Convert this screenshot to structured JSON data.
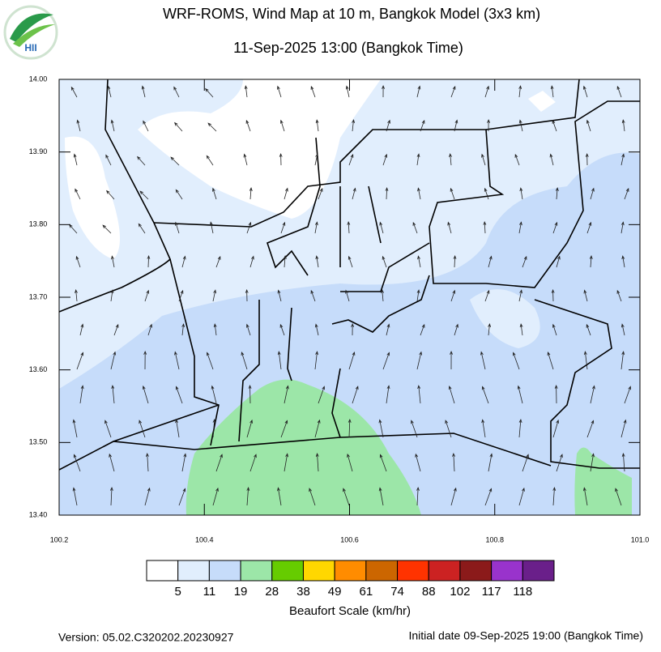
{
  "header": {
    "title": "WRF-ROMS, Wind Map at 10 m, Bangkok Model (3x3 km)",
    "subtitle": "11-Sep-2025 13:00 (Bangkok Time)"
  },
  "logo": "HII",
  "map": {
    "xlim": [
      100.2,
      101.0
    ],
    "ylim": [
      13.4,
      14.0
    ],
    "xticks": [
      100.2,
      100.4,
      100.6,
      100.8,
      {
        "value": 101,
        "label": "101.0"
      }
    ],
    "yticks": [
      {
        "value": 13.4,
        "label": "13.40"
      },
      {
        "value": 13.5,
        "label": "13.50"
      },
      {
        "value": 13.6,
        "label": "13.60"
      },
      {
        "value": 13.7,
        "label": "13.70"
      },
      {
        "value": 13.8,
        "label": "13.80"
      },
      {
        "value": 13.9,
        "label": "13.90"
      },
      {
        "value": 14,
        "label": "14.00"
      }
    ]
  },
  "colorbar": {
    "title": "Beaufort Scale (km/hr)",
    "colors": [
      "#ffffff",
      "#e1eefd",
      "#c6dcfa",
      "#9ce6a8",
      "#66cc00",
      "#ffd700",
      "#ff8c00",
      "#cc6600",
      "#ff3300",
      "#cc2222",
      "#8b1a1a",
      "#9933cc",
      "#6a1f8a"
    ],
    "levels": [
      5,
      11,
      19,
      28,
      38,
      49,
      61,
      74,
      88,
      102,
      117,
      118
    ]
  },
  "footer": {
    "version": "Version: 05.02.C320202.20230927",
    "initial_date": "Initial date 09-Sep-2025 19:00 (Bangkok Time)"
  }
}
